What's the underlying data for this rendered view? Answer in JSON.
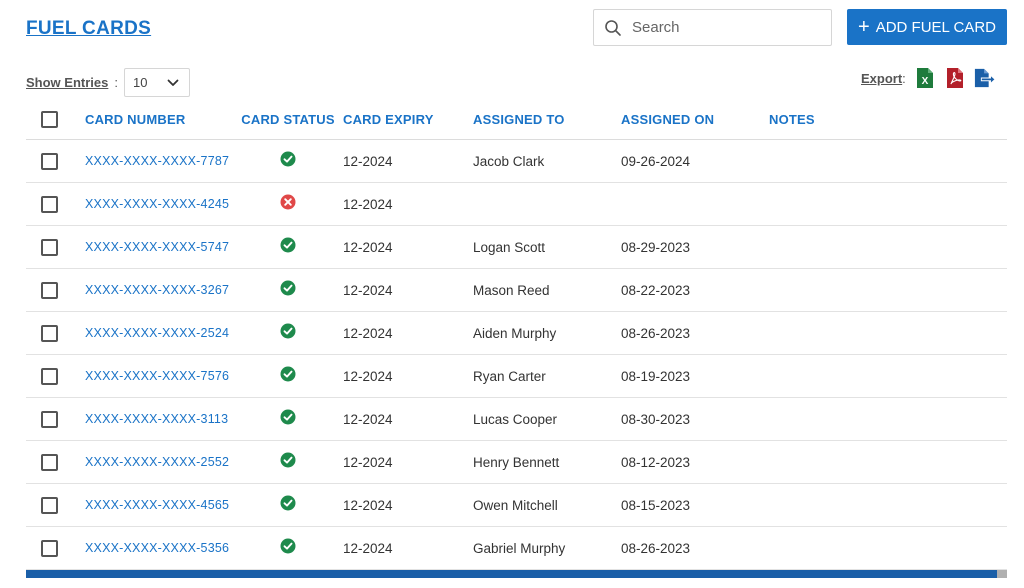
{
  "header": {
    "title": "FUEL CARDS",
    "search_placeholder": "Search",
    "add_button_label": "ADD FUEL CARD"
  },
  "entries": {
    "label": "Show Entries",
    "separator": ":",
    "value": "10"
  },
  "export": {
    "label": "Export",
    "separator": ":"
  },
  "table": {
    "columns": {
      "card_number": "CARD NUMBER",
      "card_status": "CARD STATUS",
      "card_expiry": "CARD EXPIRY",
      "assigned_to": "ASSIGNED TO",
      "assigned_on": "ASSIGNED ON",
      "notes": "NOTES"
    },
    "rows": [
      {
        "card_number": "XXXX-XXXX-XXXX-7787",
        "status": "active",
        "expiry": "12-2024",
        "assigned_to": "Jacob Clark",
        "assigned_on": "09-26-2024",
        "notes": ""
      },
      {
        "card_number": "XXXX-XXXX-XXXX-4245",
        "status": "inactive",
        "expiry": "12-2024",
        "assigned_to": "",
        "assigned_on": "",
        "notes": ""
      },
      {
        "card_number": "XXXX-XXXX-XXXX-5747",
        "status": "active",
        "expiry": "12-2024",
        "assigned_to": "Logan Scott",
        "assigned_on": "08-29-2023",
        "notes": ""
      },
      {
        "card_number": "XXXX-XXXX-XXXX-3267",
        "status": "active",
        "expiry": "12-2024",
        "assigned_to": "Mason Reed",
        "assigned_on": "08-22-2023",
        "notes": ""
      },
      {
        "card_number": "XXXX-XXXX-XXXX-2524",
        "status": "active",
        "expiry": "12-2024",
        "assigned_to": "Aiden Murphy",
        "assigned_on": "08-26-2023",
        "notes": ""
      },
      {
        "card_number": "XXXX-XXXX-XXXX-7576",
        "status": "active",
        "expiry": "12-2024",
        "assigned_to": "Ryan Carter",
        "assigned_on": "08-19-2023",
        "notes": ""
      },
      {
        "card_number": "XXXX-XXXX-XXXX-3113",
        "status": "active",
        "expiry": "12-2024",
        "assigned_to": "Lucas Cooper",
        "assigned_on": "08-30-2023",
        "notes": ""
      },
      {
        "card_number": "XXXX-XXXX-XXXX-2552",
        "status": "active",
        "expiry": "12-2024",
        "assigned_to": "Henry Bennett",
        "assigned_on": "08-12-2023",
        "notes": ""
      },
      {
        "card_number": "XXXX-XXXX-XXXX-4565",
        "status": "active",
        "expiry": "12-2024",
        "assigned_to": "Owen Mitchell",
        "assigned_on": "08-15-2023",
        "notes": ""
      },
      {
        "card_number": "XXXX-XXXX-XXXX-5356",
        "status": "active",
        "expiry": "12-2024",
        "assigned_to": "Gabriel Murphy",
        "assigned_on": "08-26-2023",
        "notes": ""
      }
    ]
  },
  "colors": {
    "accent": "#1a73c7",
    "status_active": "#1e8a4c",
    "status_inactive": "#e04848",
    "excel": "#1e7b3c",
    "pdf": "#b3202a",
    "export_file": "#1a5fa8"
  },
  "icons": {
    "search": "search-icon",
    "plus": "plus-icon",
    "chevron": "chevron-down-icon",
    "excel": "excel-icon",
    "pdf": "pdf-icon",
    "export_file": "export-file-icon",
    "active": "check-circle-icon",
    "inactive": "x-circle-icon"
  }
}
